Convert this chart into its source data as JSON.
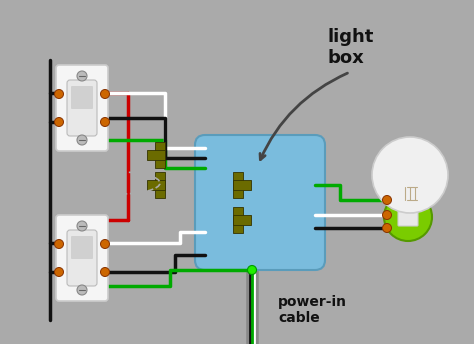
{
  "bg_color": "#aaaaaa",
  "label_light_box": "light\nbox",
  "label_power_in": "power-in\ncable",
  "wire_colors": {
    "black": "#111111",
    "white": "#ffffff",
    "red": "#cc0000",
    "green": "#00aa00",
    "dark_green": "#4a5e00"
  },
  "junction_box_color": "#7abcdd",
  "junction_box_edge": "#5a9cbb",
  "bulb_base_color": "#7acc00",
  "terminal_color": "#6b6b00",
  "terminal_edge": "#333300",
  "connector_color": "#cc6600",
  "screw_color": "#bbbbbb",
  "screw_edge": "#888888",
  "switch_plate_color": "#f5f5f5",
  "switch_plate_edge": "#cccccc",
  "rocker_color": "#e0e0e0",
  "rocker_edge": "#aaaaaa",
  "filament_color": "#bbaa88",
  "glass_color": "#f0f0f0",
  "glass_edge": "#cccccc",
  "arrow_color": "#555555",
  "oval_edge": "#aaaaaa",
  "cable_color": "#888888"
}
